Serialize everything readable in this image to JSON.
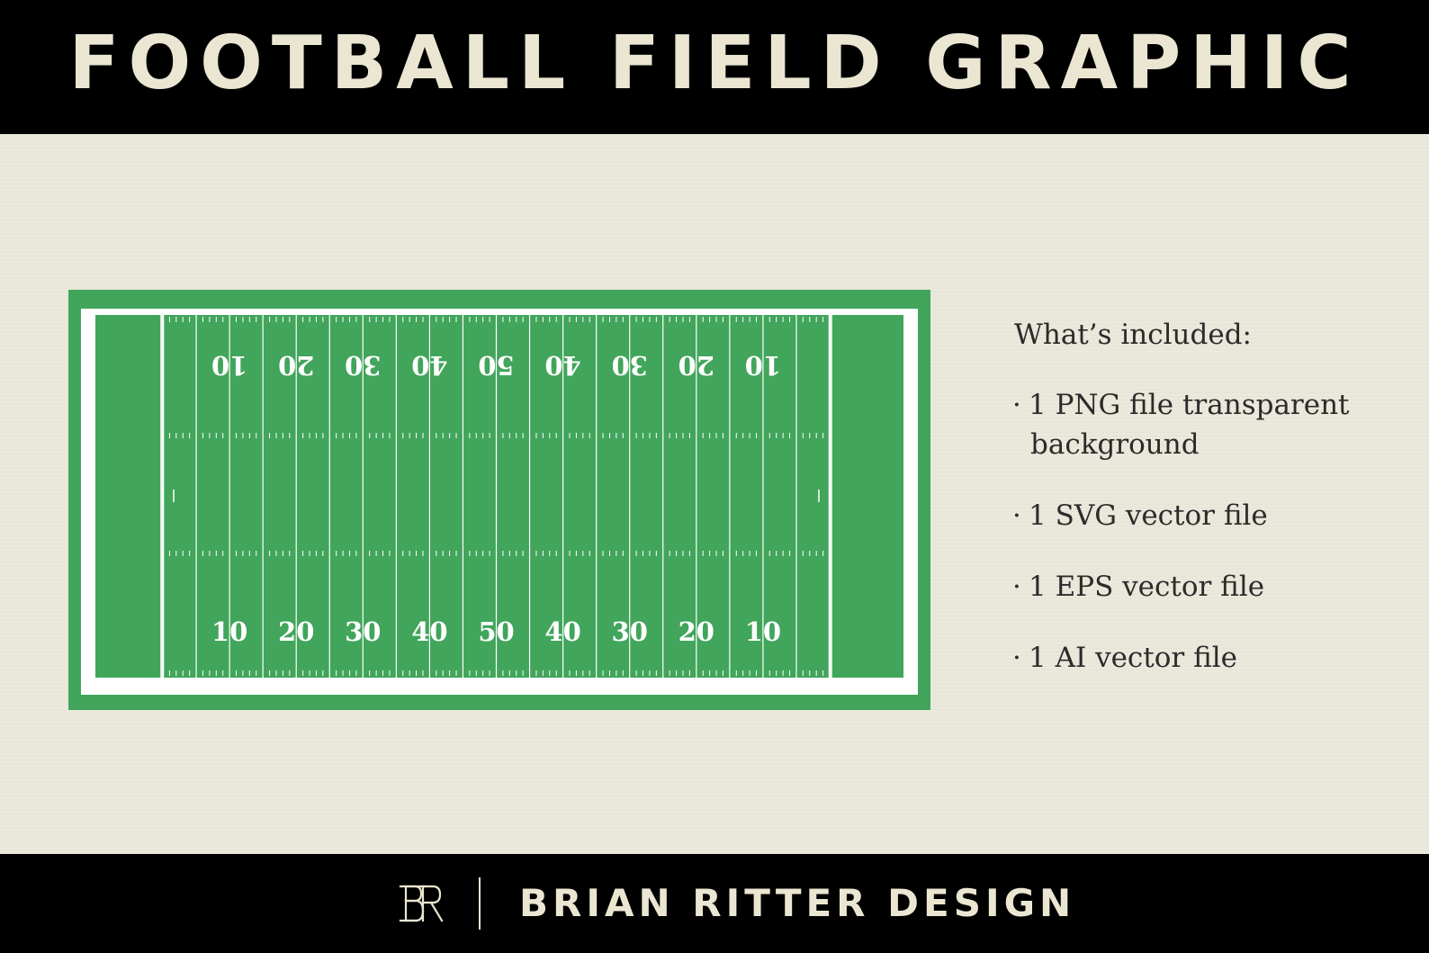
{
  "header": {
    "title": "FOOTBALL FIELD GRAPHIC"
  },
  "field": {
    "yard_numbers_top": [
      "10",
      "20",
      "30",
      "40",
      "50",
      "40",
      "30",
      "20",
      "10"
    ],
    "yard_numbers_bottom": [
      "10",
      "20",
      "30",
      "40",
      "50",
      "40",
      "30",
      "20",
      "10"
    ],
    "colors": {
      "field": "#41a55b",
      "lines": "#ffffff"
    }
  },
  "included": {
    "heading": "What’s included:",
    "items": [
      {
        "bullet": "·",
        "line1": "1 PNG file transparent",
        "line2": "background"
      },
      {
        "bullet": "·",
        "line1": "1 SVG vector file",
        "line2": ""
      },
      {
        "bullet": "·",
        "line1": "1 EPS vector file",
        "line2": ""
      },
      {
        "bullet": "·",
        "line1": "1 AI vector file",
        "line2": ""
      }
    ]
  },
  "footer": {
    "logo_icon": "br-monogram-icon",
    "brand": "BRIAN RITTER DESIGN"
  },
  "colors": {
    "banner": "#000000",
    "banner_text": "#ebe6d2",
    "background": "#ebe8dc",
    "body_text": "#2b2b2b"
  }
}
